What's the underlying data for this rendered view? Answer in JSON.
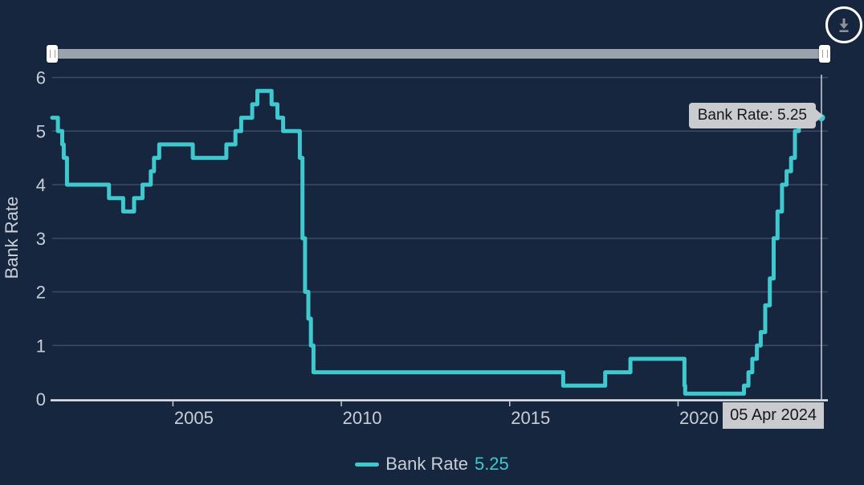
{
  "colors": {
    "background": "#17263F",
    "line": "#3FC9CE",
    "grid": "#3E4A60",
    "axis": "#E8EAEC",
    "label": "#C9CED6",
    "tooltip_bg": "#C9CBCE",
    "tooltip_text": "#17171B",
    "slider_track": "#9AA2AB",
    "crosshair": "#CDD2D8",
    "download_icon": "#8E949C"
  },
  "toolbar": {
    "download_icon": "download-arrow-icon"
  },
  "chart_data": {
    "type": "line",
    "step": "after",
    "title": "",
    "ylabel": "Bank Rate",
    "xlabel": "",
    "ylim": [
      0,
      6
    ],
    "yticks": [
      0,
      1,
      2,
      3,
      4,
      5,
      6
    ],
    "xticks": [
      2005,
      2010,
      2015,
      2020
    ],
    "xlim": [
      "2001-06-01",
      "2024-04-05"
    ],
    "grid": "horizontal",
    "legend_position": "bottom-center",
    "crosshair_date": "2024-04-05",
    "series": [
      {
        "name": "Bank Rate",
        "color": "#3FC9CE",
        "points": [
          [
            "2001-05-10",
            5.25
          ],
          [
            "2001-08-02",
            5.0
          ],
          [
            "2001-09-18",
            4.75
          ],
          [
            "2001-10-04",
            4.5
          ],
          [
            "2001-11-08",
            4.0
          ],
          [
            "2003-02-06",
            3.75
          ],
          [
            "2003-07-10",
            3.5
          ],
          [
            "2003-11-06",
            3.75
          ],
          [
            "2004-02-05",
            4.0
          ],
          [
            "2004-05-06",
            4.25
          ],
          [
            "2004-06-10",
            4.5
          ],
          [
            "2004-08-05",
            4.75
          ],
          [
            "2005-08-04",
            4.5
          ],
          [
            "2006-08-03",
            4.75
          ],
          [
            "2006-11-09",
            5.0
          ],
          [
            "2007-01-11",
            5.25
          ],
          [
            "2007-05-10",
            5.5
          ],
          [
            "2007-07-05",
            5.75
          ],
          [
            "2007-12-06",
            5.5
          ],
          [
            "2008-02-07",
            5.25
          ],
          [
            "2008-04-10",
            5.0
          ],
          [
            "2008-10-08",
            4.5
          ],
          [
            "2008-11-06",
            3.0
          ],
          [
            "2008-12-04",
            2.0
          ],
          [
            "2009-01-08",
            1.5
          ],
          [
            "2009-02-05",
            1.0
          ],
          [
            "2009-03-05",
            0.5
          ],
          [
            "2016-08-04",
            0.25
          ],
          [
            "2017-11-02",
            0.5
          ],
          [
            "2018-08-02",
            0.75
          ],
          [
            "2020-03-11",
            0.25
          ],
          [
            "2020-03-19",
            0.1
          ],
          [
            "2021-12-16",
            0.25
          ],
          [
            "2022-02-03",
            0.5
          ],
          [
            "2022-03-17",
            0.75
          ],
          [
            "2022-05-05",
            1.0
          ],
          [
            "2022-06-16",
            1.25
          ],
          [
            "2022-08-04",
            1.75
          ],
          [
            "2022-09-22",
            2.25
          ],
          [
            "2022-11-03",
            3.0
          ],
          [
            "2022-12-15",
            3.5
          ],
          [
            "2023-02-02",
            4.0
          ],
          [
            "2023-03-23",
            4.25
          ],
          [
            "2023-05-11",
            4.5
          ],
          [
            "2023-06-22",
            5.0
          ],
          [
            "2023-08-03",
            5.25
          ],
          [
            "2024-04-05",
            5.25
          ]
        ]
      }
    ]
  },
  "tooltip": {
    "text": "Bank Rate: 5.25"
  },
  "x_axis_tooltip": {
    "text": "05 Apr 2024"
  },
  "legend": {
    "label": "Bank Rate",
    "value": "5.25"
  }
}
